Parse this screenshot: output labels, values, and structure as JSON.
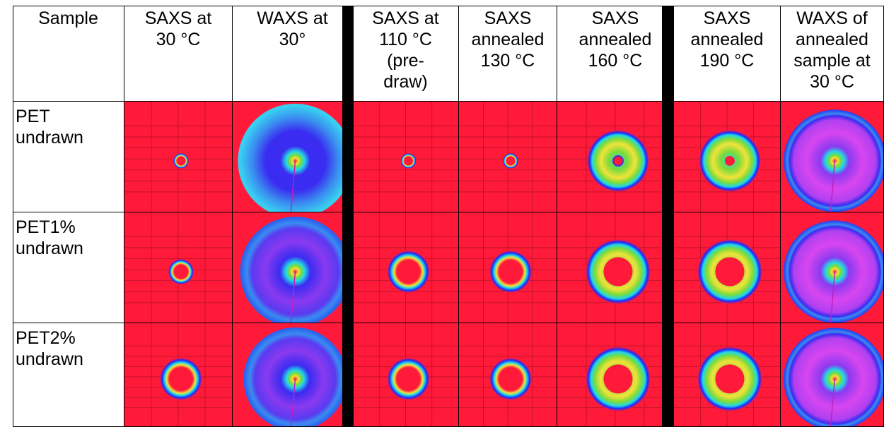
{
  "table": {
    "header_sample": "Sample",
    "columns": [
      {
        "label": "SAXS at 30 °C",
        "lines": [
          "SAXS at",
          "30 °C"
        ]
      },
      {
        "label": "WAXS at 30°",
        "lines": [
          "WAXS at",
          "30°"
        ]
      },
      {
        "label": "SAXS at 110 °C (pre-draw)",
        "lines": [
          "SAXS at",
          "110 °C",
          "(pre-",
          "draw)"
        ]
      },
      {
        "label": "SAXS annealed 130 °C",
        "lines": [
          "SAXS",
          "annealed",
          "130 °C"
        ]
      },
      {
        "label": "SAXS annealed 160 °C",
        "lines": [
          "SAXS",
          "annealed",
          "160 °C"
        ]
      },
      {
        "label": "SAXS annealed 190 °C",
        "lines": [
          "SAXS",
          "annealed",
          "190 °C"
        ]
      },
      {
        "label": "WAXS of annealed sample at 30 °C",
        "lines": [
          "WAXS of",
          "annealed",
          "sample at",
          "30 °C"
        ]
      }
    ],
    "rows": [
      {
        "lines": [
          "PET",
          "undrawn"
        ],
        "patterns": [
          "saxs-small-spot",
          "waxs-cyan-halo",
          "saxs-small-spot",
          "saxs-small-spot",
          "saxs-ring",
          "saxs-double-ring",
          "waxs-magenta-rings"
        ]
      },
      {
        "lines": [
          "PET1%",
          "undrawn"
        ],
        "patterns": [
          "saxs-medium-spot",
          "waxs-blue-halo",
          "saxs-large-spot",
          "saxs-large-spot",
          "saxs-arc-ring",
          "saxs-arc-ring",
          "waxs-magenta-rings"
        ]
      },
      {
        "lines": [
          "PET2%",
          "undrawn"
        ],
        "patterns": [
          "saxs-large-spot",
          "waxs-blue-halo",
          "saxs-large-spot",
          "saxs-large-spot",
          "saxs-arc-ring",
          "saxs-arc-ring",
          "waxs-magenta-rings"
        ]
      }
    ]
  },
  "colors": {
    "background_red": "#ff1a3a",
    "saxs_blue": "#1a2bff",
    "saxs_cyan": "#22d8e6",
    "saxs_green": "#7bdc3a",
    "saxs_yellow": "#f2e23a",
    "waxs_cyan": "#38d0f0",
    "waxs_blue": "#3a2cf0",
    "waxs_magenta": "#d846f0",
    "divider": "#000000"
  }
}
